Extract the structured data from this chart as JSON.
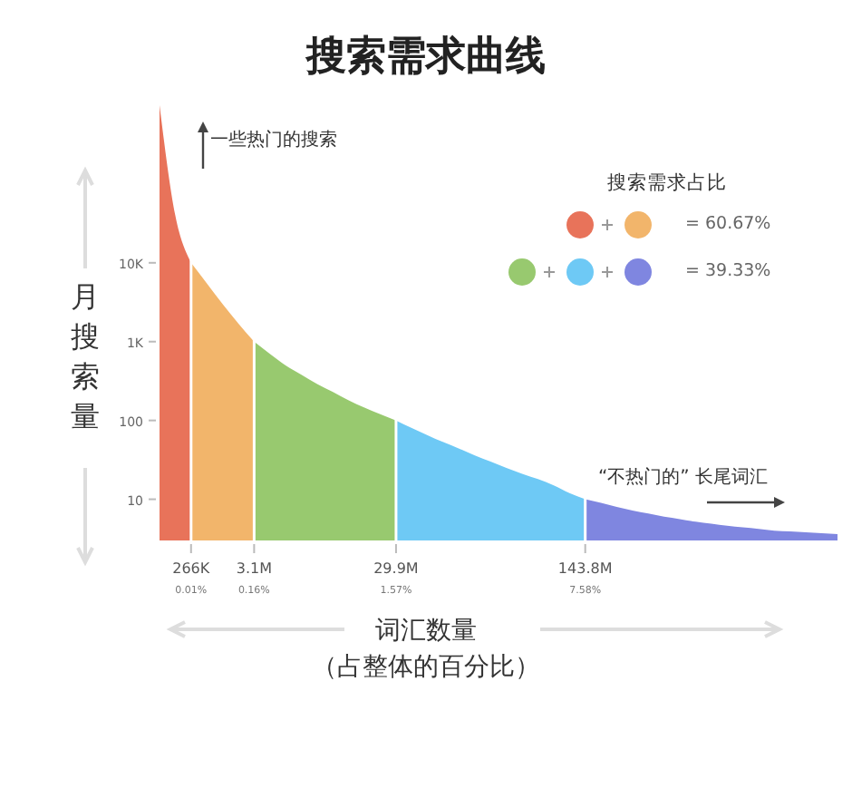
{
  "chart_data": {
    "type": "area",
    "title": "搜索需求曲线",
    "xlabel": "词汇数量",
    "ylabel": "月搜索量",
    "legend_title": "搜索需求占比",
    "annotations": [
      "一些热门的搜索",
      "“不热门的” 长尾词汇",
      "= 60.67%",
      "= 39.33%",
      "（占整体的百分比）"
    ],
    "categories": [
      null,
      null,
      "266K\n0.01%",
      null,
      null,
      null,
      "3.1M\n0.16%",
      null,
      null,
      null,
      null,
      null,
      null,
      null,
      null,
      "29.9M\n1.57%",
      null,
      null,
      null,
      null,
      null,
      null,
      null,
      null,
      null,
      null,
      null,
      "143.8M\n7.58%",
      null,
      null,
      null,
      null,
      null,
      null,
      null,
      null,
      null,
      null,
      null,
      null,
      null,
      null,
      null,
      null
    ],
    "log": "y",
    "grid": true,
    "ylim": [
      3,
      1000000
    ],
    "yticks": [
      10,
      100,
      {
        "value": 1000,
        "label": "1K"
      },
      {
        "value": 10000,
        "label": "10K"
      }
    ],
    "series": [
      {
        "color": "#e8735a",
        "values": [
          1000000,
          40000,
          10000,
          null,
          null,
          null,
          null,
          null,
          null,
          null,
          null,
          null,
          null,
          null,
          null,
          null,
          null,
          null,
          null,
          null,
          null,
          null,
          null,
          null,
          null,
          null,
          null,
          null,
          null,
          null,
          null,
          null,
          null,
          null,
          null,
          null,
          null,
          null,
          null,
          null,
          null,
          null,
          null,
          null
        ]
      },
      {
        "color": "#f2b56b",
        "values": [
          null,
          null,
          10000,
          5500,
          3000,
          1700,
          1000,
          null,
          null,
          null,
          null,
          null,
          null,
          null,
          null,
          null,
          null,
          null,
          null,
          null,
          null,
          null,
          null,
          null,
          null,
          null,
          null,
          null,
          null,
          null,
          null,
          null,
          null,
          null,
          null,
          null,
          null,
          null,
          null,
          null,
          null,
          null,
          null,
          null
        ]
      },
      {
        "color": "#98c96f",
        "values": [
          null,
          null,
          null,
          null,
          null,
          null,
          1000,
          700,
          500,
          380,
          290,
          230,
          180,
          145,
          120,
          100,
          null,
          null,
          null,
          null,
          null,
          null,
          null,
          null,
          null,
          null,
          null,
          null,
          null,
          null,
          null,
          null,
          null,
          null,
          null,
          null,
          null,
          null,
          null,
          null,
          null,
          null,
          null,
          null
        ]
      },
      {
        "color": "#6ec9f5",
        "values": [
          null,
          null,
          null,
          null,
          null,
          null,
          null,
          null,
          null,
          null,
          null,
          null,
          null,
          null,
          null,
          100,
          80,
          65,
          53,
          44,
          36,
          30,
          25,
          21,
          18,
          15,
          12,
          10,
          null,
          null,
          null,
          null,
          null,
          null,
          null,
          null,
          null,
          null,
          null,
          null,
          null,
          null,
          null,
          null
        ]
      },
      {
        "color": "#7f86e0",
        "values": [
          null,
          null,
          null,
          null,
          null,
          null,
          null,
          null,
          null,
          null,
          null,
          null,
          null,
          null,
          null,
          null,
          null,
          null,
          null,
          null,
          null,
          null,
          null,
          null,
          null,
          null,
          null,
          10,
          9,
          8,
          7.2,
          6.6,
          6,
          5.6,
          5.2,
          4.9,
          4.6,
          4.4,
          4.2,
          4,
          3.9,
          3.8,
          3.7,
          3.6
        ]
      }
    ]
  }
}
